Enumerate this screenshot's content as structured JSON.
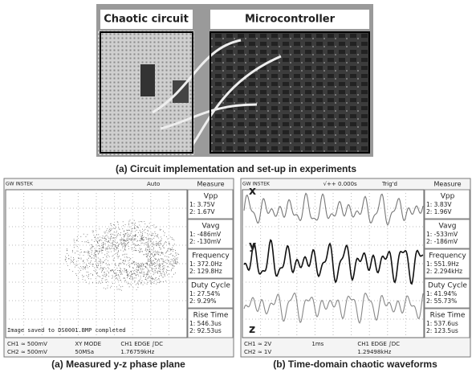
{
  "photo": {
    "labels": [
      "Chaotic circuit",
      "Microcontroller"
    ],
    "caption": "(a) Circuit implementation and set-up in experiments"
  },
  "scopes": [
    {
      "brand": "GW INSTEK",
      "trigger": "Auto",
      "menu": "Measure",
      "measurements": [
        {
          "name": "Vpp",
          "lines": [
            "1: 3.75V",
            "2: 1.67V"
          ]
        },
        {
          "name": "Vavg",
          "lines": [
            "1: -486mV",
            "2: -130mV"
          ]
        },
        {
          "name": "Frequency",
          "lines": [
            "1: 372.0Hz",
            "2: 129.8Hz"
          ]
        },
        {
          "name": "Duty Cycle",
          "lines": [
            "1: 27.54%",
            "2: 9.29%"
          ]
        },
        {
          "name": "Rise Time",
          "lines": [
            "1: 546.3us",
            "2: 92.53us"
          ]
        }
      ],
      "status": "Image saved to DS0001.BMP completed",
      "footer": [
        "CH1 ≈ 500mV",
        "XY MODE",
        "CH1 EDGE ∫DC",
        "CH2 ≈ 500mV",
        "50MSa",
        "1.76759kHz"
      ],
      "caption": "(a) Measured y-z phase plane"
    },
    {
      "brand": "GW INSTEK",
      "trigger": "√++ 0.000s",
      "state": "Trig'd",
      "menu": "Measure",
      "measurements": [
        {
          "name": "Vpp",
          "lines": [
            "1: 3.83V",
            "2: 1.96V"
          ]
        },
        {
          "name": "Vavg",
          "lines": [
            "1: -533mV",
            "2: -186mV"
          ]
        },
        {
          "name": "Frequency",
          "lines": [
            "1: 551.9Hz",
            "2: 2.294kHz"
          ]
        },
        {
          "name": "Duty Cycle",
          "lines": [
            "1: 41.94%",
            "2: 55.73%"
          ]
        },
        {
          "name": "Rise Time",
          "lines": [
            "1: 537.6us",
            "2: 123.5us"
          ]
        }
      ],
      "signals": [
        "x",
        "y",
        "z"
      ],
      "footer": [
        "CH1 ≈ 2V",
        "1ms",
        "CH1 EDGE ∫DC",
        "CH2 ≈ 1V",
        "1.29498kHz"
      ],
      "caption": "(b) Time-domain chaotic waveforms"
    }
  ]
}
